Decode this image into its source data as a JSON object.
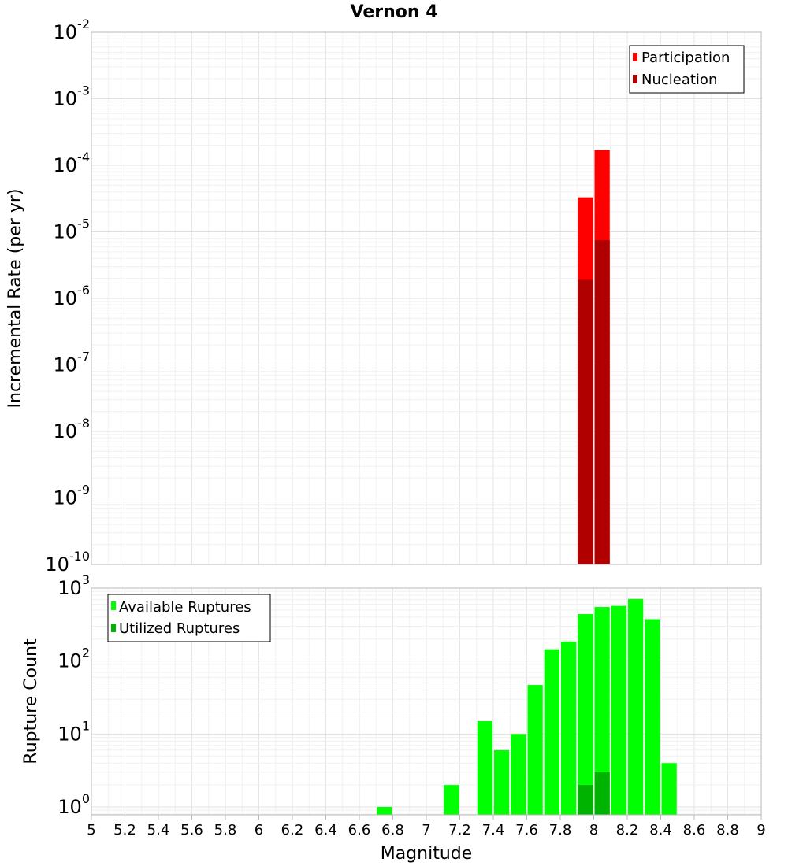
{
  "chart_data": [
    {
      "type": "bar",
      "title": "Vernon 4",
      "xlabel": "",
      "ylabel": "Incremental Rate (per yr)",
      "yscale": "log",
      "ylim": [
        1e-10,
        0.01
      ],
      "xlim": [
        5,
        9
      ],
      "bin_width": 0.1,
      "legend_position": "top-right",
      "ytick_labels": [
        {
          "base": "10",
          "exp": "-10"
        },
        {
          "base": "10",
          "exp": "-9"
        },
        {
          "base": "10",
          "exp": "-8"
        },
        {
          "base": "10",
          "exp": "-7"
        },
        {
          "base": "10",
          "exp": "-6"
        },
        {
          "base": "10",
          "exp": "-5"
        },
        {
          "base": "10",
          "exp": "-4"
        },
        {
          "base": "10",
          "exp": "-3"
        },
        {
          "base": "10",
          "exp": "-2"
        }
      ],
      "series": [
        {
          "name": "Participation",
          "color": "#ff0000",
          "x": [
            7.95,
            8.05
          ],
          "values": [
            3.3e-05,
            0.00017
          ]
        },
        {
          "name": "Nucleation",
          "color": "#b00000",
          "x": [
            7.95,
            8.05
          ],
          "values": [
            1.9e-06,
            7.5e-06
          ]
        }
      ]
    },
    {
      "type": "bar",
      "title": "",
      "xlabel": "Magnitude",
      "ylabel": "Rupture Count",
      "yscale": "log",
      "ylim": [
        0.78,
        1000
      ],
      "xlim": [
        5,
        9
      ],
      "bin_width": 0.1,
      "legend_position": "top-left",
      "ytick_labels": [
        {
          "base": "10",
          "exp": "0"
        },
        {
          "base": "10",
          "exp": "1"
        },
        {
          "base": "10",
          "exp": "2"
        },
        {
          "base": "10",
          "exp": "3"
        }
      ],
      "xtick_labels": [
        "5",
        "5.2",
        "5.4",
        "5.6",
        "5.8",
        "6",
        "6.2",
        "6.4",
        "6.6",
        "6.8",
        "7",
        "7.2",
        "7.4",
        "7.6",
        "7.8",
        "8",
        "8.2",
        "8.4",
        "8.6",
        "8.8",
        "9"
      ],
      "series": [
        {
          "name": "Available Ruptures",
          "color": "#00ff00",
          "x": [
            6.75,
            7.15,
            7.35,
            7.45,
            7.55,
            7.65,
            7.75,
            7.85,
            7.95,
            8.05,
            8.15,
            8.25,
            8.35,
            8.45
          ],
          "values": [
            1,
            2,
            15,
            6,
            10,
            47,
            145,
            185,
            440,
            550,
            570,
            710,
            375,
            4
          ]
        },
        {
          "name": "Utilized Ruptures",
          "color": "#00b300",
          "x": [
            7.95,
            8.05
          ],
          "values": [
            2,
            3
          ]
        }
      ]
    }
  ]
}
